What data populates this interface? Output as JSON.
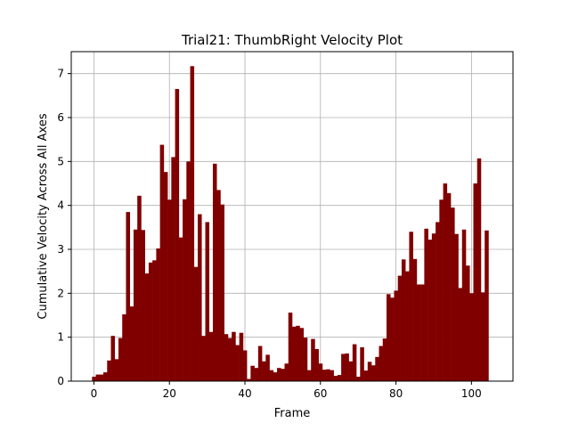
{
  "chart_data": {
    "type": "bar",
    "title": "Trial21: ThumbRight Velocity Plot",
    "xlabel": "Frame",
    "ylabel": "Cumulative Velocity Across All Axes",
    "xlim": [
      -6,
      111
    ],
    "ylim": [
      0,
      7.5
    ],
    "xticks": [
      0,
      20,
      40,
      60,
      80,
      100
    ],
    "yticks": [
      0,
      1,
      2,
      3,
      4,
      5,
      6,
      7
    ],
    "grid": true,
    "bar_color": "#800000",
    "bar_width": 1,
    "x": [
      0,
      1,
      2,
      3,
      4,
      5,
      6,
      7,
      8,
      9,
      10,
      11,
      12,
      13,
      14,
      15,
      16,
      17,
      18,
      19,
      20,
      21,
      22,
      23,
      24,
      25,
      26,
      27,
      28,
      29,
      30,
      31,
      32,
      33,
      34,
      35,
      36,
      37,
      38,
      39,
      40,
      41,
      42,
      43,
      44,
      45,
      46,
      47,
      48,
      49,
      50,
      51,
      52,
      53,
      54,
      55,
      56,
      57,
      58,
      59,
      60,
      61,
      62,
      63,
      64,
      65,
      66,
      67,
      68,
      69,
      70,
      71,
      72,
      73,
      74,
      75,
      76,
      77,
      78,
      79,
      80,
      81,
      82,
      83,
      84,
      85,
      86,
      87,
      88,
      89,
      90,
      91,
      92,
      93,
      94,
      95,
      96,
      97,
      98,
      99,
      100,
      101,
      102,
      103,
      104,
      105
    ],
    "values": [
      0.1,
      0.15,
      0.15,
      0.2,
      0.47,
      1.03,
      0.5,
      0.98,
      1.52,
      3.85,
      1.7,
      3.45,
      4.22,
      3.44,
      2.45,
      2.7,
      2.75,
      3.02,
      5.38,
      4.76,
      4.13,
      5.1,
      6.65,
      3.27,
      4.14,
      5.0,
      7.17,
      2.6,
      3.8,
      1.03,
      3.62,
      1.12,
      4.95,
      4.35,
      4.02,
      1.07,
      0.98,
      1.12,
      0.82,
      1.1,
      0.7,
      0.05,
      0.35,
      0.3,
      0.8,
      0.45,
      0.6,
      0.25,
      0.2,
      0.3,
      0.28,
      0.4,
      1.56,
      1.24,
      1.26,
      1.21,
      0.99,
      0.25,
      0.96,
      0.73,
      0.4,
      0.26,
      0.27,
      0.25,
      0.12,
      0.14,
      0.62,
      0.63,
      0.45,
      0.84,
      0.1,
      0.77,
      0.24,
      0.44,
      0.36,
      0.55,
      0.8,
      0.97,
      1.98,
      1.9,
      2.06,
      2.4,
      2.77,
      2.5,
      3.4,
      2.78,
      2.2,
      2.2,
      3.47,
      3.22,
      3.36,
      3.62,
      4.13,
      4.5,
      4.28,
      3.95,
      3.35,
      2.12,
      3.45,
      2.63,
      2.0,
      4.5,
      5.07,
      2.02,
      3.43,
      0
    ]
  }
}
